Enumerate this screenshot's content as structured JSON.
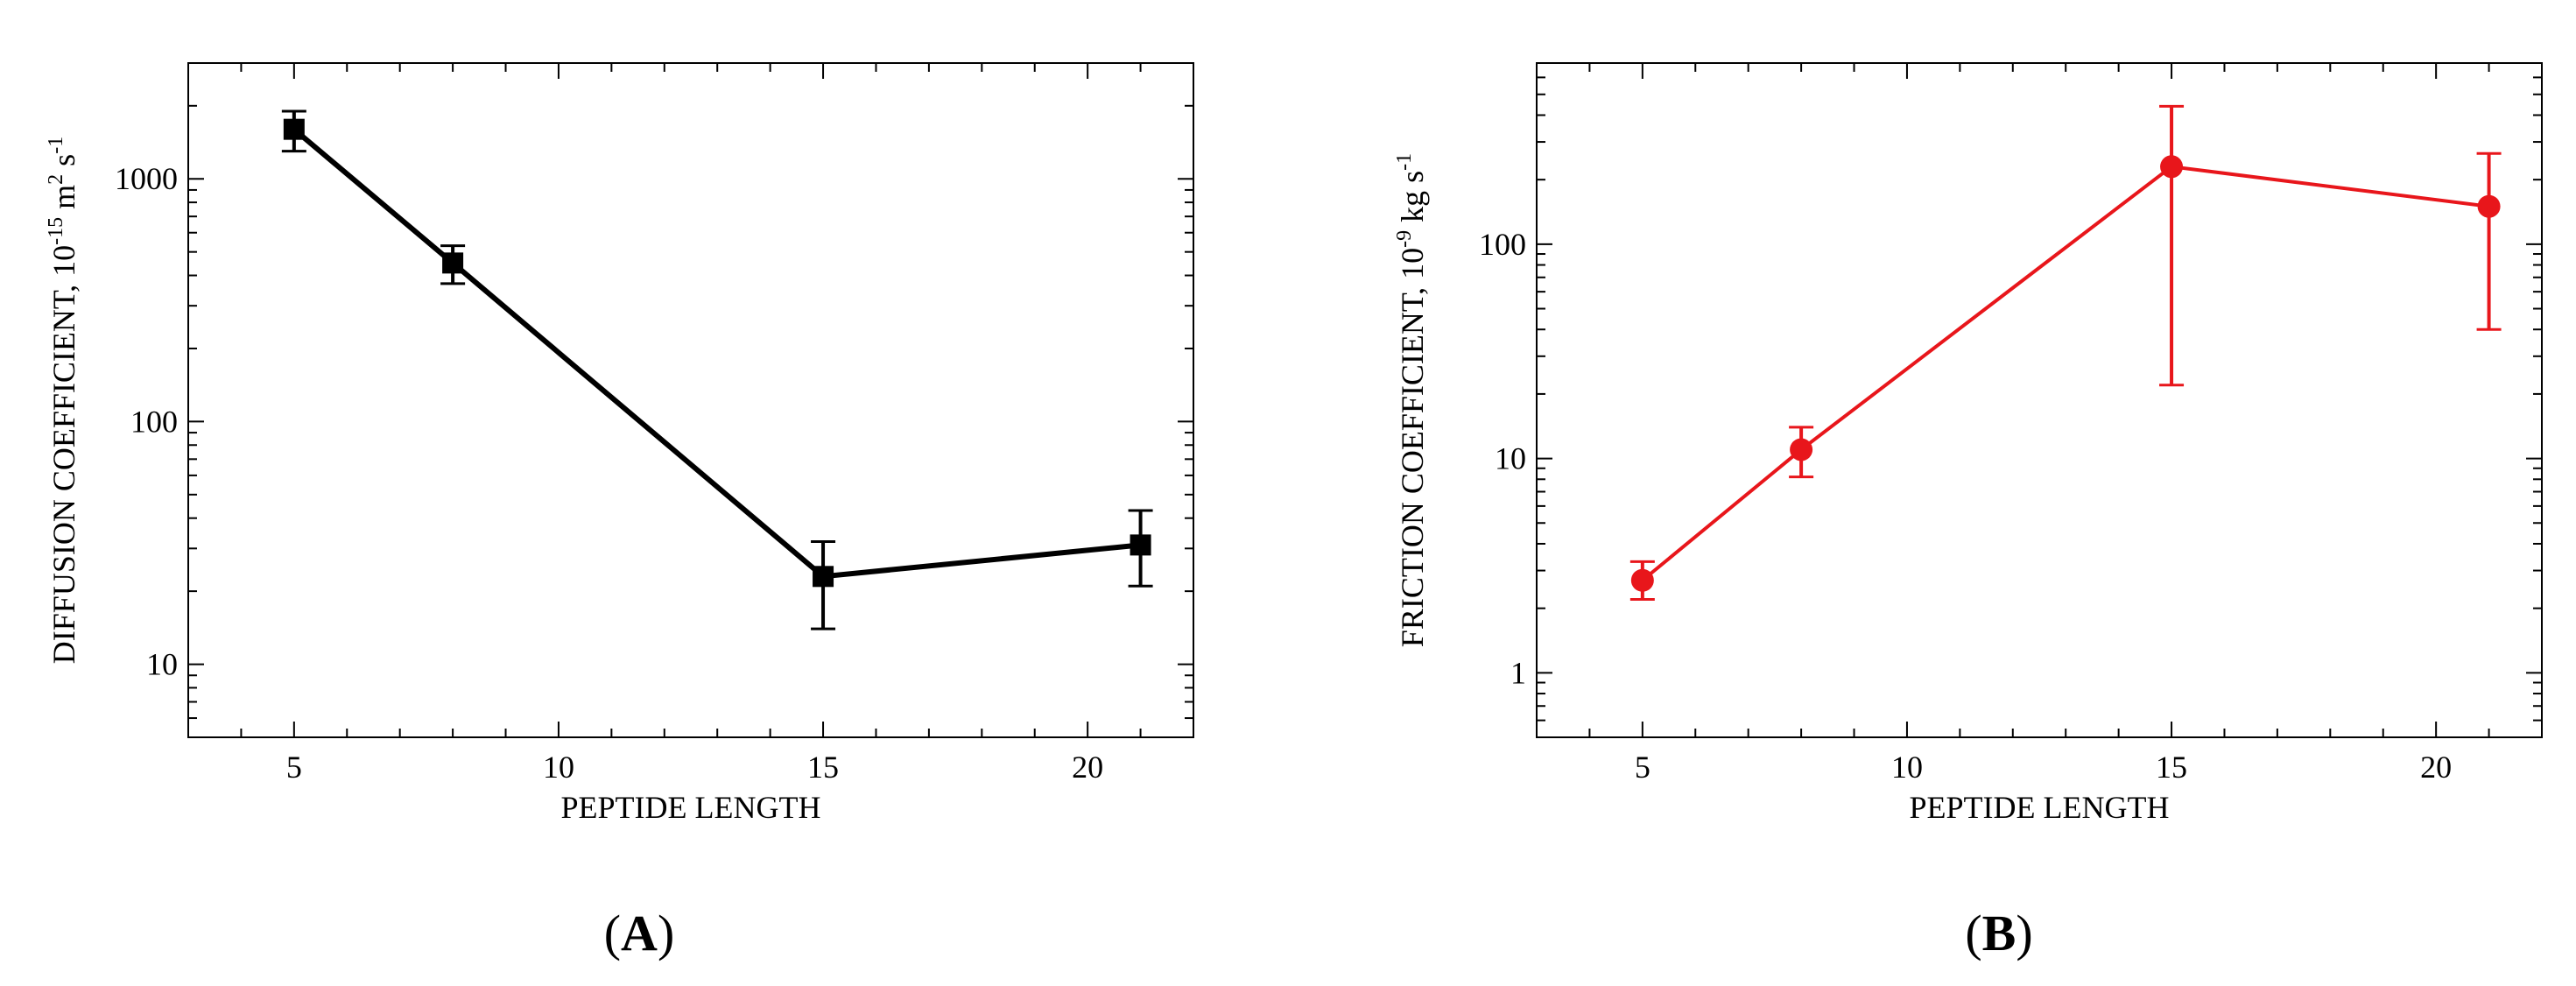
{
  "chart_data": [
    {
      "panel_label": "A",
      "type": "line",
      "xlabel": "PEPTIDE LENGTH",
      "ylabel_parts": {
        "base": "DIFFUSION COEFFICIENT, 10",
        "exp1": "-15",
        "mid": " m",
        "exp2": "2",
        "mid2": " s",
        "exp3": "-1"
      },
      "x_scale": "linear",
      "y_scale": "log",
      "xlim": [
        3,
        22
      ],
      "ylim": [
        5,
        3000
      ],
      "x_ticks": [
        5,
        10,
        15,
        20
      ],
      "x_tick_labels": [
        "5",
        "10",
        "15",
        "20"
      ],
      "y_ticks": [
        10,
        100,
        1000
      ],
      "y_tick_labels": [
        "10",
        "100",
        "1000"
      ],
      "grid": false,
      "color": "#000000",
      "marker": "square",
      "series": [
        {
          "x": [
            5,
            8,
            15,
            21
          ],
          "y": [
            1600,
            450,
            23,
            31
          ],
          "err_low": [
            1300,
            370,
            14,
            21
          ],
          "err_high": [
            1900,
            530,
            32,
            43
          ]
        }
      ]
    },
    {
      "panel_label": "B",
      "type": "line",
      "xlabel": "PEPTIDE LENGTH",
      "ylabel_parts": {
        "base": "FRICTION COEFFICIENT, 10",
        "exp1": "-9",
        "mid": " kg s",
        "exp2": "-1"
      },
      "x_scale": "linear",
      "y_scale": "log",
      "xlim": [
        3,
        22
      ],
      "ylim": [
        0.5,
        700
      ],
      "x_ticks": [
        5,
        10,
        15,
        20
      ],
      "x_tick_labels": [
        "5",
        "10",
        "15",
        "20"
      ],
      "y_ticks": [
        1,
        10,
        100
      ],
      "y_tick_labels": [
        "1",
        "10",
        "100"
      ],
      "grid": false,
      "color": "#e8161b",
      "marker": "circle",
      "series": [
        {
          "x": [
            5,
            8,
            15,
            21
          ],
          "y": [
            2.7,
            11,
            230,
            150
          ],
          "err_low": [
            2.2,
            8.2,
            22,
            40
          ],
          "err_high": [
            3.3,
            14,
            440,
            265
          ]
        }
      ]
    }
  ]
}
